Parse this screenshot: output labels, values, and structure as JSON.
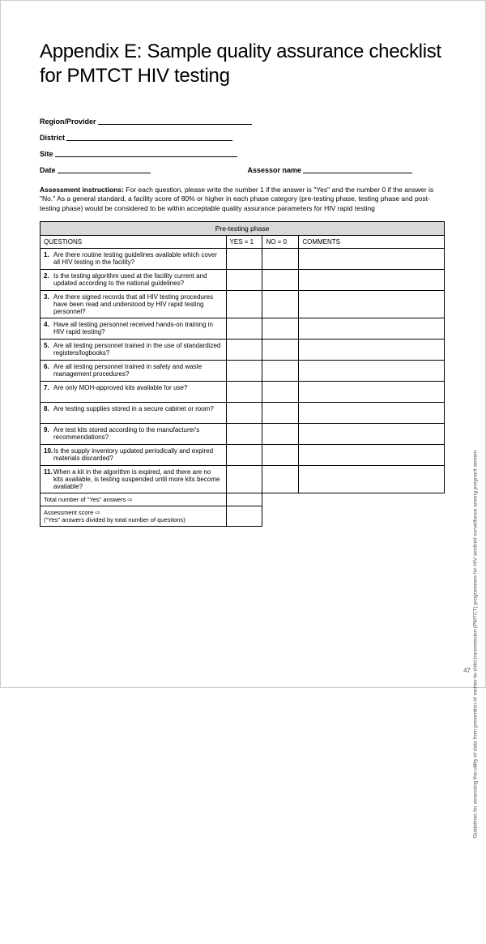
{
  "title": "Appendix E: Sample quality assurance checklist for PMTCT HIV testing",
  "fields": {
    "region": "Region/Provider",
    "district": "District",
    "site": "Site",
    "date": "Date",
    "assessor": "Assessor name"
  },
  "instructions_label": "Assessment instructions:",
  "instructions_text": " For each question, please write the number 1 if the answer is \"Yes\" and the number 0 if the answer is \"No.\" As a general standard, a facility score of 80% or higher in each phase category (pre-testing phase, testing phase and post-testing phase) would be considered to be within acceptable quality assurance parameters for HIV rapid testing",
  "table": {
    "phase_header": "Pre-testing phase",
    "col_questions": "QUESTIONS",
    "col_yes": "YES = 1",
    "col_no": "NO = 0",
    "col_comments": "COMMENTS",
    "questions": [
      {
        "n": "1.",
        "t": "Are there routine testing guidelines available which cover all HIV testing in the facility?"
      },
      {
        "n": "2.",
        "t": "Is the testing algorithm used at the facility current and updated according to the national guidelines?"
      },
      {
        "n": "3.",
        "t": "Are there signed records that all HIV testing procedures have been read and understood by HIV rapid testing personnel?"
      },
      {
        "n": "4.",
        "t": "Have all testing personnel received hands-on training in HIV rapid testing?"
      },
      {
        "n": "5.",
        "t": "Are all testing personnel trained in the use of standardized registers/logbooks?"
      },
      {
        "n": "6.",
        "t": "Are all testing personnel trained in safety and waste management procedures?"
      },
      {
        "n": "7.",
        "t": "Are only MOH-approved kits available for use?"
      },
      {
        "n": "8.",
        "t": "Are testing supplies stored in a secure cabinet or room?"
      },
      {
        "n": "9.",
        "t": "Are test kits stored according to the manufacturer's recommendations?"
      },
      {
        "n": "10.",
        "t": "Is the supply inventory updated periodically and expired materials discarded?"
      },
      {
        "n": "11.",
        "t": "When a kit in the algorithm is expired, and there are no kits available, is testing suspended until more kits become available?"
      }
    ],
    "total_row": "Total number of \"Yes\" answers ⇨",
    "score_row": "Assessment score ⇨\n(\"Yes\" answers divided by total number of questions)"
  },
  "side_text": "Guidelines for assessing the utility of data from prevention of mother-to-child transmission (PMTCT) programmes for HIV sentinel surveillance among pregnant women",
  "page_number": "47",
  "style": {
    "line_widths": {
      "region": 190,
      "district": 205,
      "site": 225,
      "date": 115,
      "assessor": 135,
      "date_gap": 120
    },
    "phase_bg": "#d9d9d9",
    "border_color": "#000000"
  }
}
